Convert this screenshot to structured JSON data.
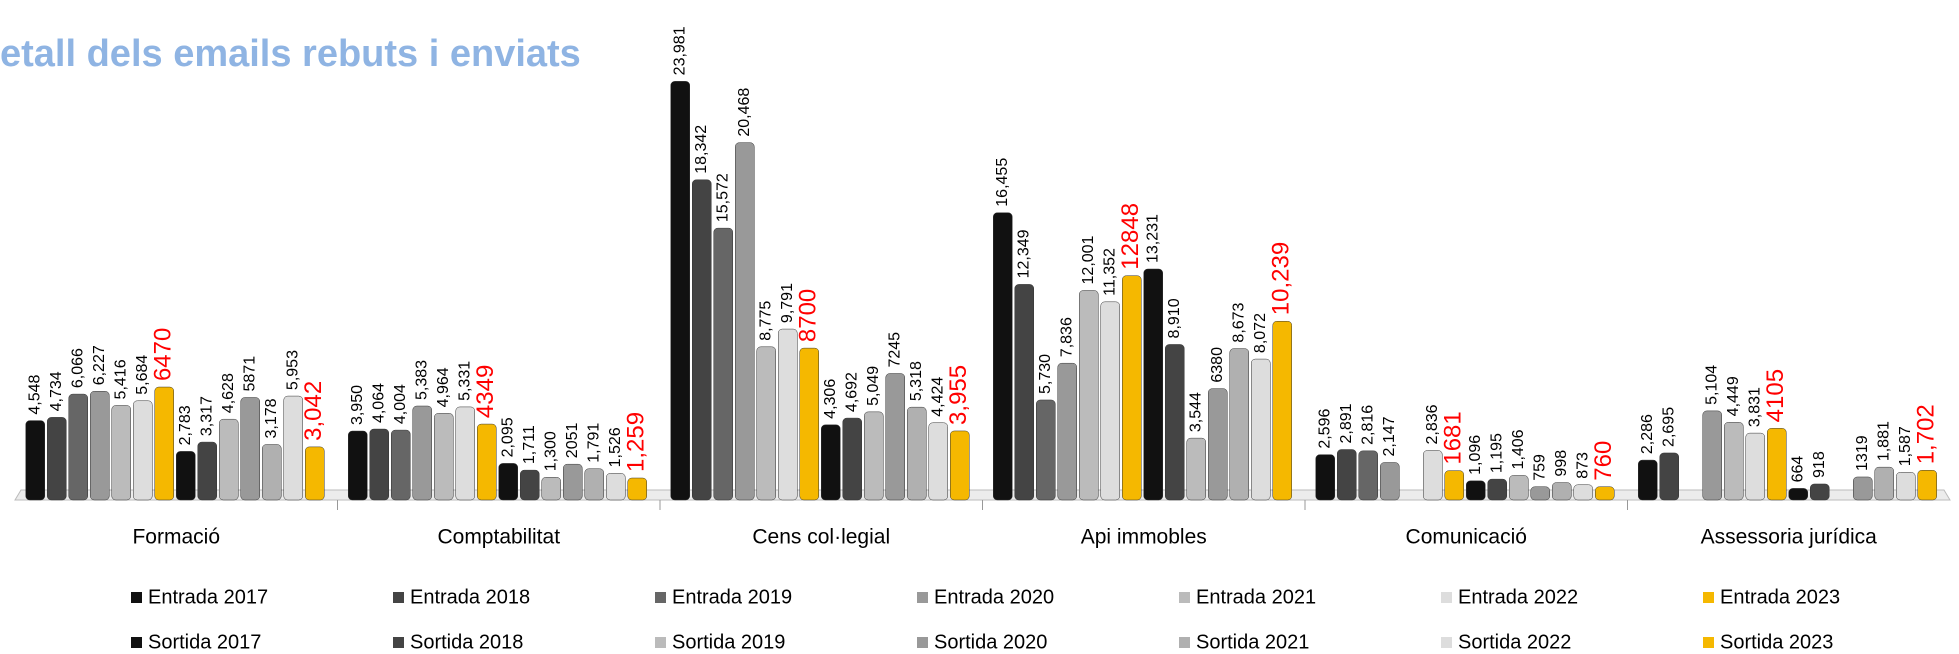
{
  "chart_data": {
    "type": "bar",
    "title": "etall dels emails rebuts i enviats",
    "categories": [
      "Formació",
      "Comptabilitat",
      "Cens col·legial",
      "Api immobles",
      "Comunicació",
      "Assessoria jurídica"
    ],
    "ylim": [
      0,
      24000
    ],
    "series": [
      {
        "name": "Entrada 2017",
        "color": "#111111",
        "label_color": "#000000",
        "values": [
          4548,
          3950,
          23981,
          16455,
          2596,
          2286
        ],
        "value_labels": [
          "4,548",
          "3,950",
          "23,981",
          "16,455",
          "2,596",
          "2,286"
        ]
      },
      {
        "name": "Entrada 2018",
        "color": "#444444",
        "label_color": "#000000",
        "values": [
          4734,
          4064,
          18342,
          12349,
          2891,
          2695
        ],
        "value_labels": [
          "4,734",
          "4,064",
          "18,342",
          "12,349",
          "2,891",
          "2,695"
        ]
      },
      {
        "name": "Entrada 2019",
        "color": "#666666",
        "label_color": "#000000",
        "values": [
          6066,
          4004,
          15572,
          5730,
          2816,
          null
        ],
        "value_labels": [
          "6,066",
          "4,004",
          "15,572",
          "5,730",
          "2,816",
          null
        ]
      },
      {
        "name": "Entrada 2020",
        "color": "#999999",
        "label_color": "#000000",
        "values": [
          6227,
          5383,
          20468,
          7836,
          2147,
          5104
        ],
        "value_labels": [
          "6,227",
          "5,383",
          "20,468",
          "7,836",
          "2,147",
          "5,104"
        ]
      },
      {
        "name": "Entrada 2021",
        "color": "#bbbbbb",
        "label_color": "#000000",
        "values": [
          5416,
          4964,
          8775,
          12001,
          null,
          4449
        ],
        "value_labels": [
          "5,416",
          "4,964",
          "8,775",
          "12,001",
          null,
          "4,449"
        ]
      },
      {
        "name": "Entrada 2022",
        "color": "#dddddd",
        "label_color": "#000000",
        "values": [
          5684,
          5331,
          9791,
          11352,
          2836,
          3831
        ],
        "value_labels": [
          "5,684",
          "5,331",
          "9,791",
          "11,352",
          "2,836",
          "3,831"
        ]
      },
      {
        "name": "Entrada 2023",
        "color": "#f5b800",
        "label_color": "#ff0000",
        "values": [
          6470,
          4349,
          8700,
          12848,
          1681,
          4105
        ]
      },
      {
        "name": "Sortida 2017",
        "color": "#111111",
        "label_color": "#000000",
        "values": [
          2783,
          2095,
          4306,
          13231,
          1096,
          664
        ],
        "value_labels": [
          "2,783",
          "2,095",
          "4,306",
          "13,231",
          "1,096",
          "664"
        ]
      },
      {
        "name": "Sortida 2018",
        "color": "#444444",
        "label_color": "#000000",
        "values": [
          3317,
          1711,
          4692,
          8910,
          1195,
          918
        ],
        "value_labels": [
          "3,317",
          "1,711",
          "4,692",
          "8,910",
          "1,195",
          "918"
        ]
      },
      {
        "name": "Sortida 2019",
        "color": "#bbbbbb",
        "label_color": "#000000",
        "values": [
          4628,
          1300,
          5049,
          3544,
          1406,
          null
        ],
        "value_labels": [
          "4,628",
          "1,300",
          "5,049",
          "3,544",
          "1,406",
          null
        ]
      },
      {
        "name": "Sortida 2020",
        "color": "#999999",
        "label_color": "#000000",
        "values": [
          5871,
          2051,
          7245,
          6380,
          759,
          1319
        ]
      },
      {
        "name": "Sortida 2021",
        "color": "#b0b0b0",
        "label_color": "#000000",
        "values": [
          3178,
          1791,
          5318,
          8673,
          998,
          1881
        ],
        "value_labels": [
          "3,178",
          "1,791",
          "5,318",
          "8,673",
          "998",
          "1,881"
        ]
      },
      {
        "name": "Sortida 2022",
        "color": "#dddddd",
        "label_color": "#000000",
        "values": [
          5953,
          1526,
          4424,
          8072,
          873,
          1587
        ],
        "value_labels": [
          "5,953",
          "1,526",
          "4,424",
          "8,072",
          "873",
          "1,587"
        ]
      },
      {
        "name": "Sortida 2023",
        "color": "#f5b800",
        "label_color": "#ff0000",
        "values": [
          3042,
          1259,
          3955,
          10239,
          760,
          1702
        ],
        "value_labels": [
          "3,042",
          "1,259",
          "3,955",
          "10,239",
          "760",
          "1,702"
        ]
      }
    ]
  }
}
